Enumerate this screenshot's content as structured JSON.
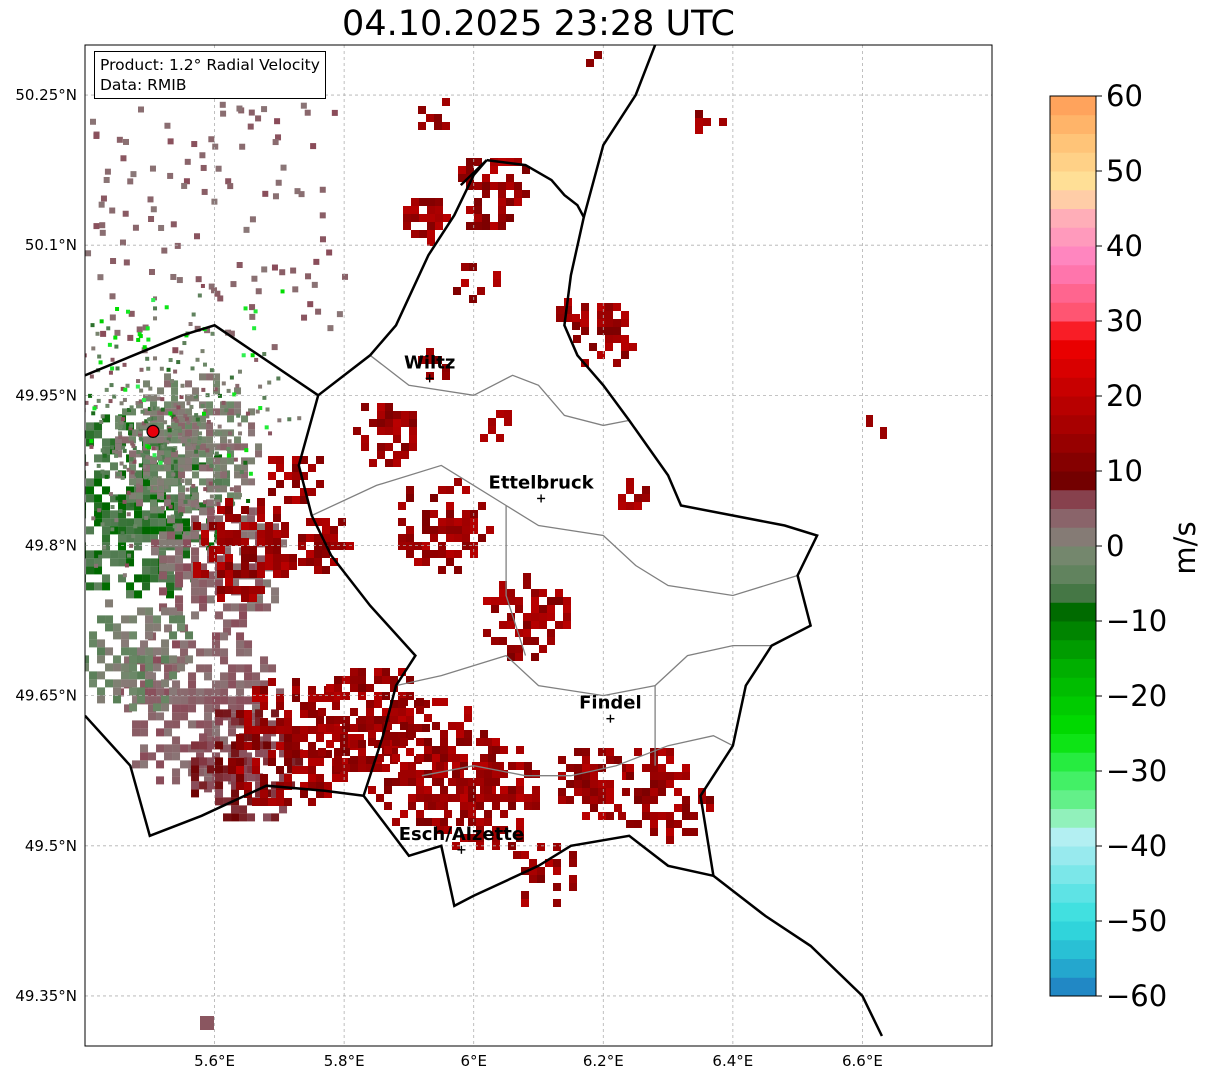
{
  "title": "04.10.2025 23:28 UTC",
  "infobox": {
    "product": "Product: 1.2° Radial Velocity",
    "data": "Data: RMIB"
  },
  "axes": {
    "lon_range": [
      5.4,
      6.8
    ],
    "lat_range": [
      49.3,
      50.3
    ],
    "lat_ticks": [
      {
        "value": 50.25,
        "label": "50.25°N"
      },
      {
        "value": 50.1,
        "label": "50.1°N"
      },
      {
        "value": 49.95,
        "label": "49.95°N"
      },
      {
        "value": 49.8,
        "label": "49.8°N"
      },
      {
        "value": 49.65,
        "label": "49.65°N"
      },
      {
        "value": 49.5,
        "label": "49.5°N"
      },
      {
        "value": 49.35,
        "label": "49.35°N"
      }
    ],
    "lon_ticks": [
      {
        "value": 5.6,
        "label": "5.6°E"
      },
      {
        "value": 5.8,
        "label": "5.8°E"
      },
      {
        "value": 6.0,
        "label": "6°E"
      },
      {
        "value": 6.2,
        "label": "6.2°E"
      },
      {
        "value": 6.4,
        "label": "6.4°E"
      },
      {
        "value": 6.6,
        "label": "6.6°E"
      }
    ],
    "grid": true
  },
  "radar_site": {
    "lon": 5.505,
    "lat": 49.914,
    "color": "#e8000b"
  },
  "cities": [
    {
      "name": "Wiltz",
      "lon": 5.932,
      "lat": 49.967
    },
    {
      "name": "Ettelbruck",
      "lon": 6.104,
      "lat": 49.847
    },
    {
      "name": "Findel",
      "lon": 6.211,
      "lat": 49.627
    },
    {
      "name": "Esch/Alzette",
      "lon": 5.981,
      "lat": 49.496
    }
  ],
  "colorbar": {
    "label": "m/s",
    "min": -60,
    "max": 60,
    "ticks": [
      {
        "value": 60,
        "label": "60"
      },
      {
        "value": 50,
        "label": "50"
      },
      {
        "value": 40,
        "label": "40"
      },
      {
        "value": 30,
        "label": "30"
      },
      {
        "value": 20,
        "label": "20"
      },
      {
        "value": 10,
        "label": "10"
      },
      {
        "value": 0,
        "label": "0"
      },
      {
        "value": -10,
        "label": "−10"
      },
      {
        "value": -20,
        "label": "−20"
      },
      {
        "value": -30,
        "label": "−30"
      },
      {
        "value": -40,
        "label": "−40"
      },
      {
        "value": -50,
        "label": "−50"
      },
      {
        "value": -60,
        "label": "−60"
      }
    ],
    "stops": [
      {
        "value": -60,
        "color": "#1f78c0"
      },
      {
        "value": -55,
        "color": "#26b6d2"
      },
      {
        "value": -50,
        "color": "#33dede"
      },
      {
        "value": -40,
        "color": "#a6ecf0"
      },
      {
        "value": -37,
        "color": "#c6f2f4"
      },
      {
        "value": -36,
        "color": "#7ff0a8"
      },
      {
        "value": -30,
        "color": "#33f055"
      },
      {
        "value": -25,
        "color": "#00e000"
      },
      {
        "value": -15,
        "color": "#00a800"
      },
      {
        "value": -8,
        "color": "#006400"
      },
      {
        "value": -6,
        "color": "#4f7a4f"
      },
      {
        "value": -2,
        "color": "#6f8a6a"
      },
      {
        "value": 2,
        "color": "#8a7878"
      },
      {
        "value": 6,
        "color": "#8a4a58"
      },
      {
        "value": 8,
        "color": "#6e0000"
      },
      {
        "value": 15,
        "color": "#a00000"
      },
      {
        "value": 20,
        "color": "#c00000"
      },
      {
        "value": 28,
        "color": "#f50000"
      },
      {
        "value": 30,
        "color": "#ff4d64"
      },
      {
        "value": 38,
        "color": "#ff80c0"
      },
      {
        "value": 44,
        "color": "#ffb0b8"
      },
      {
        "value": 48,
        "color": "#ffe39a"
      },
      {
        "value": 55,
        "color": "#ffbd70"
      },
      {
        "value": 60,
        "color": "#ff9a55"
      }
    ]
  },
  "boundaries": {
    "country": [
      [
        6.02,
        50.185
      ],
      [
        6.08,
        50.18
      ],
      [
        6.12,
        50.165
      ],
      [
        6.14,
        50.15
      ],
      [
        6.16,
        50.14
      ],
      [
        6.17,
        50.128
      ],
      [
        6.15,
        50.07
      ],
      [
        6.14,
        50.02
      ],
      [
        6.16,
        49.99
      ],
      [
        6.2,
        49.96
      ],
      [
        6.24,
        49.925
      ],
      [
        6.3,
        49.87
      ],
      [
        6.32,
        49.84
      ],
      [
        6.4,
        49.83
      ],
      [
        6.48,
        49.82
      ],
      [
        6.53,
        49.81
      ],
      [
        6.5,
        49.77
      ],
      [
        6.52,
        49.72
      ],
      [
        6.46,
        49.7
      ],
      [
        6.42,
        49.66
      ],
      [
        6.4,
        49.6
      ],
      [
        6.35,
        49.55
      ],
      [
        6.37,
        49.47
      ],
      [
        6.3,
        49.48
      ],
      [
        6.24,
        49.51
      ],
      [
        6.15,
        49.5
      ],
      [
        6.1,
        49.48
      ],
      [
        6.0,
        49.45
      ],
      [
        5.97,
        49.44
      ],
      [
        5.95,
        49.5
      ],
      [
        5.9,
        49.49
      ],
      [
        5.83,
        49.55
      ],
      [
        5.86,
        49.61
      ],
      [
        5.88,
        49.66
      ],
      [
        5.91,
        49.69
      ],
      [
        5.84,
        49.74
      ],
      [
        5.78,
        49.79
      ],
      [
        5.75,
        49.83
      ],
      [
        5.73,
        49.88
      ],
      [
        5.76,
        49.95
      ],
      [
        5.84,
        49.99
      ],
      [
        5.88,
        50.02
      ],
      [
        5.93,
        50.09
      ],
      [
        5.97,
        50.13
      ],
      [
        6.0,
        50.17
      ],
      [
        6.02,
        50.185
      ]
    ],
    "international": [
      [
        [
          5.98,
          50.16
        ],
        [
          6.02,
          50.185
        ]
      ],
      [
        [
          5.4,
          49.63
        ],
        [
          5.47,
          49.58
        ],
        [
          5.5,
          49.51
        ],
        [
          5.58,
          49.53
        ],
        [
          5.68,
          49.56
        ],
        [
          5.77,
          49.555
        ],
        [
          5.83,
          49.55
        ]
      ],
      [
        [
          6.37,
          49.47
        ],
        [
          6.45,
          49.43
        ],
        [
          6.52,
          49.4
        ],
        [
          6.6,
          49.35
        ],
        [
          6.63,
          49.31
        ]
      ],
      [
        [
          6.17,
          50.128
        ],
        [
          6.2,
          50.2
        ],
        [
          6.25,
          50.25
        ],
        [
          6.28,
          50.3
        ]
      ],
      [
        [
          5.4,
          49.97
        ],
        [
          5.55,
          50.01
        ],
        [
          5.6,
          50.02
        ],
        [
          5.76,
          49.95
        ]
      ]
    ],
    "districts": [
      [
        [
          5.84,
          49.99
        ],
        [
          5.9,
          49.96
        ],
        [
          6.0,
          49.95
        ],
        [
          6.06,
          49.97
        ],
        [
          6.1,
          49.96
        ],
        [
          6.14,
          49.93
        ],
        [
          6.2,
          49.92
        ],
        [
          6.24,
          49.925
        ]
      ],
      [
        [
          5.75,
          49.83
        ],
        [
          5.85,
          49.86
        ],
        [
          5.95,
          49.88
        ],
        [
          6.0,
          49.86
        ],
        [
          6.05,
          49.84
        ],
        [
          6.1,
          49.82
        ],
        [
          6.2,
          49.81
        ],
        [
          6.25,
          49.78
        ],
        [
          6.3,
          49.76
        ],
        [
          6.4,
          49.75
        ],
        [
          6.5,
          49.77
        ]
      ],
      [
        [
          5.88,
          49.66
        ],
        [
          5.95,
          49.67
        ],
        [
          6.05,
          49.69
        ],
        [
          6.1,
          49.66
        ],
        [
          6.2,
          49.65
        ],
        [
          6.28,
          49.66
        ],
        [
          6.33,
          49.69
        ],
        [
          6.4,
          49.7
        ],
        [
          6.46,
          49.7
        ]
      ],
      [
        [
          5.92,
          49.57
        ],
        [
          6.0,
          49.58
        ],
        [
          6.08,
          49.57
        ],
        [
          6.15,
          49.57
        ],
        [
          6.22,
          49.58
        ],
        [
          6.3,
          49.6
        ],
        [
          6.37,
          49.61
        ],
        [
          6.4,
          49.6
        ]
      ],
      [
        [
          6.05,
          49.84
        ],
        [
          6.05,
          49.75
        ],
        [
          6.08,
          49.69
        ]
      ],
      [
        [
          6.28,
          49.66
        ],
        [
          6.28,
          49.58
        ]
      ]
    ]
  }
}
